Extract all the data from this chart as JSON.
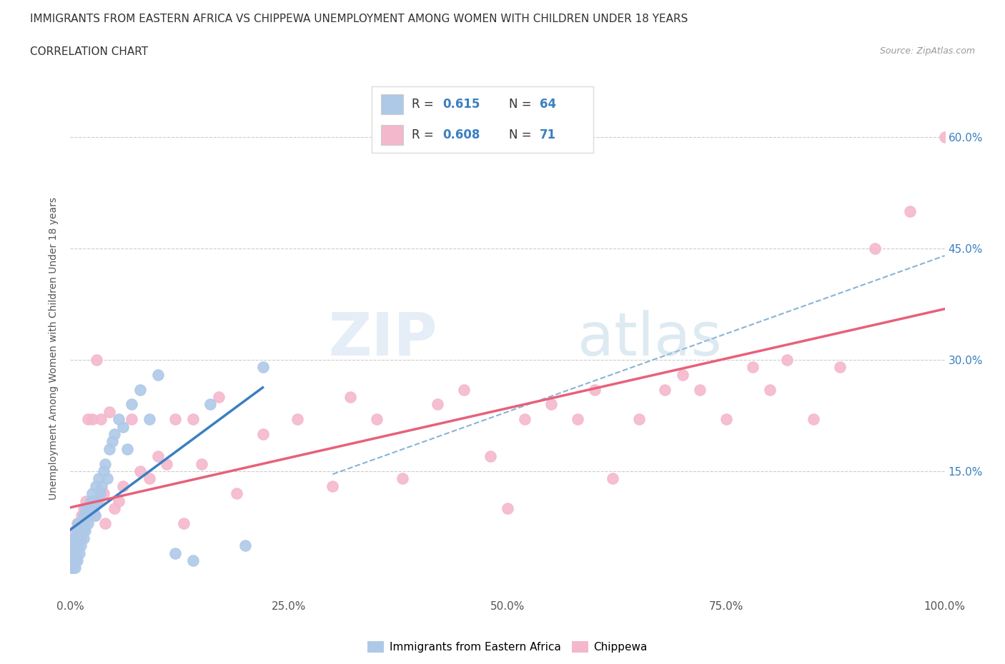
{
  "title_line1": "IMMIGRANTS FROM EASTERN AFRICA VS CHIPPEWA UNEMPLOYMENT AMONG WOMEN WITH CHILDREN UNDER 18 YEARS",
  "title_line2": "CORRELATION CHART",
  "source": "Source: ZipAtlas.com",
  "ylabel": "Unemployment Among Women with Children Under 18 years",
  "xlim": [
    0,
    1.0
  ],
  "ylim": [
    -0.02,
    0.65
  ],
  "xticks": [
    0.0,
    0.25,
    0.5,
    0.75,
    1.0
  ],
  "xtick_labels": [
    "0.0%",
    "25.0%",
    "50.0%",
    "75.0%",
    "100.0%"
  ],
  "yticks": [
    0.0,
    0.15,
    0.3,
    0.45,
    0.6
  ],
  "ytick_labels": [
    "",
    "15.0%",
    "30.0%",
    "45.0%",
    "60.0%"
  ],
  "blue_color": "#aec9e8",
  "pink_color": "#f4b8cc",
  "blue_line_color": "#3a7fc1",
  "pink_line_color": "#e8607a",
  "dashed_line_color": "#8ab4d4",
  "watermark_zip": "ZIP",
  "watermark_atlas": "atlas",
  "legend_text_color": "#3a7fc1",
  "grid_color": "#cccccc",
  "blue_x": [
    0.001,
    0.001,
    0.002,
    0.002,
    0.003,
    0.003,
    0.003,
    0.004,
    0.004,
    0.005,
    0.005,
    0.005,
    0.006,
    0.006,
    0.007,
    0.007,
    0.008,
    0.008,
    0.009,
    0.009,
    0.01,
    0.01,
    0.011,
    0.012,
    0.013,
    0.014,
    0.015,
    0.015,
    0.016,
    0.017,
    0.018,
    0.019,
    0.02,
    0.021,
    0.022,
    0.023,
    0.024,
    0.025,
    0.026,
    0.027,
    0.028,
    0.029,
    0.03,
    0.032,
    0.034,
    0.036,
    0.038,
    0.04,
    0.042,
    0.045,
    0.048,
    0.05,
    0.055,
    0.06,
    0.065,
    0.07,
    0.08,
    0.09,
    0.1,
    0.12,
    0.14,
    0.16,
    0.2,
    0.22
  ],
  "blue_y": [
    0.02,
    0.04,
    0.03,
    0.05,
    0.02,
    0.04,
    0.06,
    0.03,
    0.05,
    0.02,
    0.04,
    0.06,
    0.03,
    0.05,
    0.04,
    0.06,
    0.03,
    0.07,
    0.05,
    0.08,
    0.04,
    0.07,
    0.06,
    0.05,
    0.08,
    0.07,
    0.06,
    0.09,
    0.08,
    0.07,
    0.1,
    0.09,
    0.08,
    0.1,
    0.09,
    0.11,
    0.1,
    0.12,
    0.11,
    0.1,
    0.09,
    0.13,
    0.11,
    0.14,
    0.12,
    0.13,
    0.15,
    0.16,
    0.14,
    0.18,
    0.19,
    0.2,
    0.22,
    0.21,
    0.18,
    0.24,
    0.26,
    0.22,
    0.28,
    0.04,
    0.03,
    0.24,
    0.05,
    0.29
  ],
  "pink_x": [
    0.001,
    0.002,
    0.003,
    0.004,
    0.005,
    0.005,
    0.006,
    0.007,
    0.008,
    0.008,
    0.009,
    0.01,
    0.011,
    0.012,
    0.013,
    0.014,
    0.015,
    0.016,
    0.018,
    0.02,
    0.022,
    0.025,
    0.028,
    0.03,
    0.032,
    0.035,
    0.038,
    0.04,
    0.045,
    0.05,
    0.055,
    0.06,
    0.07,
    0.08,
    0.09,
    0.1,
    0.11,
    0.12,
    0.13,
    0.14,
    0.15,
    0.17,
    0.19,
    0.22,
    0.26,
    0.3,
    0.32,
    0.35,
    0.38,
    0.42,
    0.45,
    0.48,
    0.5,
    0.52,
    0.55,
    0.58,
    0.6,
    0.62,
    0.65,
    0.68,
    0.7,
    0.72,
    0.75,
    0.78,
    0.8,
    0.82,
    0.85,
    0.88,
    0.92,
    0.96,
    1.0
  ],
  "pink_y": [
    0.02,
    0.03,
    0.04,
    0.03,
    0.05,
    0.07,
    0.04,
    0.06,
    0.05,
    0.08,
    0.06,
    0.07,
    0.08,
    0.06,
    0.09,
    0.07,
    0.1,
    0.09,
    0.11,
    0.22,
    0.1,
    0.22,
    0.09,
    0.3,
    0.11,
    0.22,
    0.12,
    0.08,
    0.23,
    0.1,
    0.11,
    0.13,
    0.22,
    0.15,
    0.14,
    0.17,
    0.16,
    0.22,
    0.08,
    0.22,
    0.16,
    0.25,
    0.12,
    0.2,
    0.22,
    0.13,
    0.25,
    0.22,
    0.14,
    0.24,
    0.26,
    0.17,
    0.1,
    0.22,
    0.24,
    0.22,
    0.26,
    0.14,
    0.22,
    0.26,
    0.28,
    0.26,
    0.22,
    0.29,
    0.26,
    0.3,
    0.22,
    0.29,
    0.45,
    0.5,
    0.6
  ]
}
